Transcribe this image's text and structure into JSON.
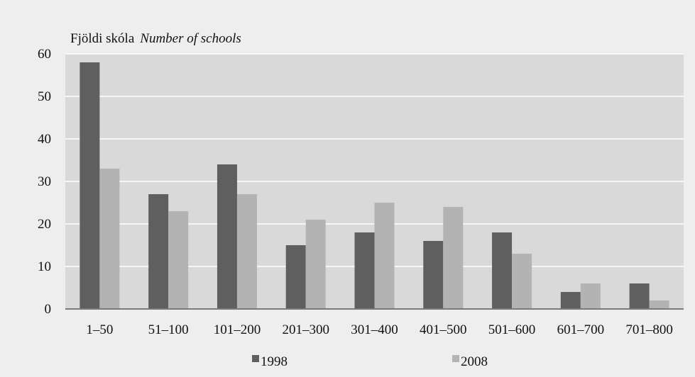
{
  "chart_data": {
    "type": "bar",
    "ylabel": "Fjöldi skóla",
    "ylabel_en": "Number of schools",
    "xlabel": "",
    "categories": [
      "1–50",
      "51–100",
      "101–200",
      "201–300",
      "301–400",
      "401–500",
      "501–600",
      "601–700",
      "701–800"
    ],
    "series": [
      {
        "name": "1998",
        "color": "#5f5f5f",
        "values": [
          58,
          27,
          34,
          15,
          18,
          16,
          18,
          4,
          6
        ]
      },
      {
        "name": "2008",
        "color": "#b3b3b3",
        "values": [
          33,
          23,
          27,
          21,
          25,
          24,
          13,
          6,
          2
        ]
      }
    ],
    "ylim": [
      0,
      60
    ],
    "yticks": [
      0,
      10,
      20,
      30,
      40,
      50,
      60
    ],
    "grid": true,
    "legend_position": "bottom-center",
    "plot_background": "#d9d9d9"
  }
}
